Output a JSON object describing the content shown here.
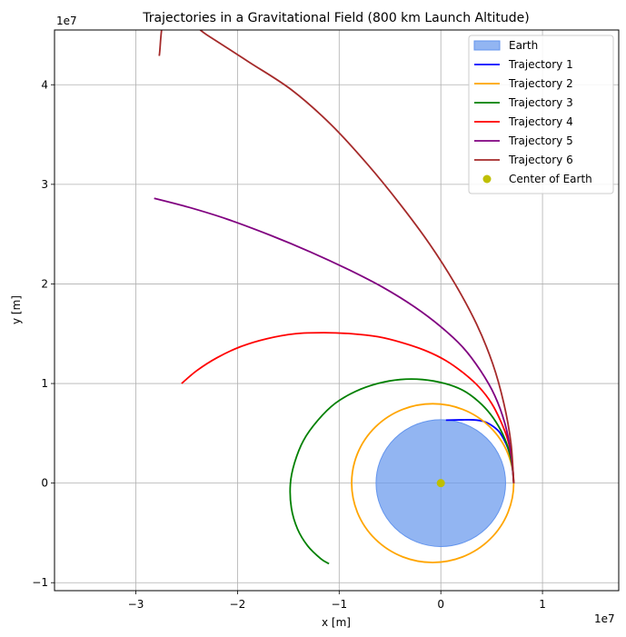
{
  "chart_data": {
    "type": "line",
    "title": "Trajectories in a Gravitational Field (800 km Launch Altitude)",
    "xlabel": "x [m]",
    "ylabel": "y [m]",
    "x_offset_label": "1e7",
    "y_offset_label": "1e7",
    "xlim": [
      -3.8,
      1.75
    ],
    "ylim": [
      -1.08,
      4.55
    ],
    "x_ticks": [
      -3,
      -2,
      -1,
      0,
      1
    ],
    "y_ticks": [
      -1,
      0,
      1,
      2,
      3,
      4
    ],
    "x_tick_labels": [
      "−3",
      "−2",
      "−1",
      "0",
      "1"
    ],
    "y_tick_labels": [
      "−1",
      "0",
      "1",
      "2",
      "3",
      "4"
    ],
    "grid": true,
    "legend_position": "top-right",
    "earth": {
      "label": "Earth",
      "center": [
        0,
        0
      ],
      "radius": 0.6371,
      "color": "#6495ED"
    },
    "center_point": {
      "label": "Center of Earth",
      "x": 0,
      "y": 0,
      "color": "#bfbf00"
    },
    "series": [
      {
        "name": "Trajectory 1",
        "color": "#0000ff",
        "points": [
          [
            0.717,
            0.0
          ],
          [
            0.71,
            0.12
          ],
          [
            0.69,
            0.24
          ],
          [
            0.66,
            0.35
          ],
          [
            0.62,
            0.44
          ],
          [
            0.57,
            0.52
          ],
          [
            0.5,
            0.58
          ],
          [
            0.42,
            0.62
          ],
          [
            0.32,
            0.635
          ],
          [
            0.2,
            0.635
          ],
          [
            0.05,
            0.632
          ]
        ]
      },
      {
        "name": "Trajectory 2",
        "color": "#ffa500",
        "ellipse": {
          "cx": -0.08,
          "cy": 0.0,
          "rx": 0.797,
          "ry": 0.797
        }
      },
      {
        "name": "Trajectory 3",
        "color": "#008000",
        "points": [
          [
            0.717,
            0.0
          ],
          [
            0.7,
            0.18
          ],
          [
            0.66,
            0.36
          ],
          [
            0.59,
            0.53
          ],
          [
            0.49,
            0.69
          ],
          [
            0.37,
            0.82
          ],
          [
            0.22,
            0.93
          ],
          [
            0.04,
            1.0
          ],
          [
            -0.18,
            1.04
          ],
          [
            -0.4,
            1.04
          ],
          [
            -0.62,
            1.0
          ],
          [
            -0.84,
            0.92
          ],
          [
            -1.04,
            0.8
          ],
          [
            -1.21,
            0.63
          ],
          [
            -1.35,
            0.43
          ],
          [
            -1.44,
            0.2
          ],
          [
            -1.48,
            -0.01
          ],
          [
            -1.47,
            -0.25
          ],
          [
            -1.41,
            -0.46
          ],
          [
            -1.31,
            -0.63
          ],
          [
            -1.18,
            -0.76
          ],
          [
            -1.1,
            -0.81
          ]
        ]
      },
      {
        "name": "Trajectory 4",
        "color": "#ff0000",
        "points": [
          [
            0.717,
            0.0
          ],
          [
            0.7,
            0.22
          ],
          [
            0.66,
            0.43
          ],
          [
            0.59,
            0.62
          ],
          [
            0.5,
            0.8
          ],
          [
            0.38,
            0.96
          ],
          [
            0.23,
            1.1
          ],
          [
            0.05,
            1.23
          ],
          [
            -0.15,
            1.33
          ],
          [
            -0.38,
            1.41
          ],
          [
            -0.62,
            1.47
          ],
          [
            -0.88,
            1.5
          ],
          [
            -1.15,
            1.51
          ],
          [
            -1.43,
            1.5
          ],
          [
            -1.71,
            1.45
          ],
          [
            -1.97,
            1.37
          ],
          [
            -2.2,
            1.26
          ],
          [
            -2.4,
            1.13
          ],
          [
            -2.55,
            1.0
          ]
        ]
      },
      {
        "name": "Trajectory 5",
        "color": "#800080",
        "points": [
          [
            0.717,
            0.0
          ],
          [
            0.69,
            0.3
          ],
          [
            0.63,
            0.6
          ],
          [
            0.53,
            0.88
          ],
          [
            0.39,
            1.13
          ],
          [
            0.22,
            1.36
          ],
          [
            0.0,
            1.57
          ],
          [
            -0.26,
            1.77
          ],
          [
            -0.56,
            1.96
          ],
          [
            -0.9,
            2.14
          ],
          [
            -1.28,
            2.32
          ],
          [
            -1.68,
            2.49
          ],
          [
            -2.1,
            2.65
          ],
          [
            -2.48,
            2.77
          ],
          [
            -2.82,
            2.86
          ]
        ]
      },
      {
        "name": "Trajectory 6",
        "color": "#a52a2a",
        "points": [
          [
            0.717,
            0.0
          ],
          [
            0.69,
            0.4
          ],
          [
            0.62,
            0.8
          ],
          [
            0.51,
            1.2
          ],
          [
            0.35,
            1.6
          ],
          [
            0.14,
            2.0
          ],
          [
            -0.11,
            2.4
          ],
          [
            -0.4,
            2.8
          ],
          [
            -0.72,
            3.2
          ],
          [
            -1.08,
            3.6
          ],
          [
            -1.47,
            3.95
          ],
          [
            -1.89,
            4.23
          ],
          [
            -2.3,
            4.5
          ],
          [
            -2.68,
            4.75
          ],
          [
            -2.77,
            4.29
          ]
        ]
      }
    ]
  }
}
